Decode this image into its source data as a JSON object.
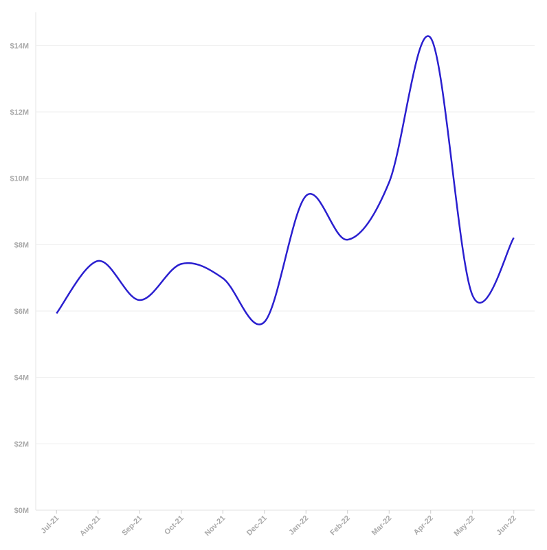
{
  "chart_data": {
    "type": "line",
    "categories": [
      "Jul-21",
      "Aug-21",
      "Sep-21",
      "Oct-21",
      "Nov-21",
      "Dec-21",
      "Jan-22",
      "Feb-22",
      "Mar-22",
      "Apr-22",
      "May-22",
      "Jun-22"
    ],
    "values": [
      5930000,
      7510000,
      6330000,
      7420000,
      6990000,
      5670000,
      9470000,
      8150000,
      9880000,
      14230000,
      6490000,
      8210000
    ],
    "color": "#2a1fcf",
    "ylim": [
      0,
      15000000
    ],
    "yticks": [
      {
        "value": 0,
        "label": "$0M"
      },
      {
        "value": 2000000,
        "label": "$2M"
      },
      {
        "value": 4000000,
        "label": "$4M"
      },
      {
        "value": 6000000,
        "label": "$6M"
      },
      {
        "value": 8000000,
        "label": "$8M"
      },
      {
        "value": 10000000,
        "label": "$10M"
      },
      {
        "value": 12000000,
        "label": "$12M"
      },
      {
        "value": 14000000,
        "label": "$14M"
      }
    ],
    "grid": true
  }
}
